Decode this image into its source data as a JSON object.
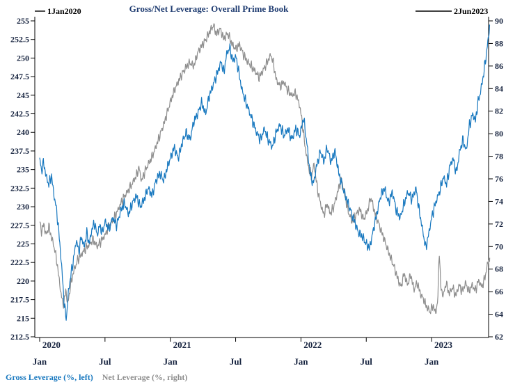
{
  "chart_data": {
    "type": "line",
    "title": "Gross/Net Leverage: Overall Prime Book",
    "annotations": {
      "start_date_label": "1Jan2020",
      "end_date_label": "2Jun2023"
    },
    "x_axis": {
      "unit": "decimal_year",
      "range": [
        2019.96,
        2023.46
      ],
      "month_ticks": [
        {
          "t": 2020.0,
          "label": "Jan"
        },
        {
          "t": 2020.5,
          "label": "Jul"
        },
        {
          "t": 2021.0,
          "label": "Jan"
        },
        {
          "t": 2021.5,
          "label": "Jul"
        },
        {
          "t": 2022.0,
          "label": "Jan"
        },
        {
          "t": 2022.5,
          "label": "Jul"
        },
        {
          "t": 2023.0,
          "label": "Jan"
        }
      ],
      "year_labels": [
        {
          "t": 2020.09,
          "label": "2020"
        },
        {
          "t": 2021.09,
          "label": "2021"
        },
        {
          "t": 2022.09,
          "label": "2022"
        },
        {
          "t": 2023.09,
          "label": "2023"
        }
      ]
    },
    "y_left_axis": {
      "min": 212.5,
      "max": 255,
      "tick_step": 2.5
    },
    "y_right_axis": {
      "min": 62,
      "max": 90,
      "tick_step": 2
    },
    "series": [
      {
        "name": "Gross Leverage (%, left)",
        "axis": "left",
        "color": "#1878bf",
        "points": [
          [
            2020.0,
            236.3
          ],
          [
            2020.015,
            234.8
          ],
          [
            2020.03,
            236.0
          ],
          [
            2020.05,
            234.0
          ],
          [
            2020.07,
            233.0
          ],
          [
            2020.09,
            234.2
          ],
          [
            2020.11,
            231.5
          ],
          [
            2020.13,
            229.5
          ],
          [
            2020.15,
            226.0
          ],
          [
            2020.17,
            221.5
          ],
          [
            2020.19,
            216.5
          ],
          [
            2020.205,
            215.0
          ],
          [
            2020.22,
            218.5
          ],
          [
            2020.24,
            221.0
          ],
          [
            2020.26,
            223.0
          ],
          [
            2020.28,
            225.5
          ],
          [
            2020.3,
            224.0
          ],
          [
            2020.32,
            226.0
          ],
          [
            2020.34,
            224.5
          ],
          [
            2020.36,
            226.5
          ],
          [
            2020.38,
            225.0
          ],
          [
            2020.4,
            227.0
          ],
          [
            2020.42,
            227.8
          ],
          [
            2020.44,
            226.2
          ],
          [
            2020.46,
            227.5
          ],
          [
            2020.48,
            226.5
          ],
          [
            2020.5,
            228.0
          ],
          [
            2020.53,
            227.0
          ],
          [
            2020.56,
            228.5
          ],
          [
            2020.59,
            227.5
          ],
          [
            2020.62,
            229.5
          ],
          [
            2020.65,
            230.5
          ],
          [
            2020.68,
            229.0
          ],
          [
            2020.71,
            230.5
          ],
          [
            2020.74,
            231.5
          ],
          [
            2020.77,
            230.0
          ],
          [
            2020.8,
            231.0
          ],
          [
            2020.83,
            232.5
          ],
          [
            2020.86,
            231.5
          ],
          [
            2020.89,
            233.5
          ],
          [
            2020.92,
            234.5
          ],
          [
            2020.95,
            233.5
          ],
          [
            2020.98,
            235.5
          ],
          [
            2021.0,
            236.5
          ],
          [
            2021.03,
            238.0
          ],
          [
            2021.06,
            236.5
          ],
          [
            2021.09,
            238.5
          ],
          [
            2021.12,
            240.0
          ],
          [
            2021.15,
            239.0
          ],
          [
            2021.18,
            241.5
          ],
          [
            2021.21,
            242.5
          ],
          [
            2021.24,
            244.0
          ],
          [
            2021.27,
            242.5
          ],
          [
            2021.3,
            245.0
          ],
          [
            2021.33,
            246.5
          ],
          [
            2021.36,
            248.0
          ],
          [
            2021.39,
            249.5
          ],
          [
            2021.41,
            248.0
          ],
          [
            2021.43,
            250.5
          ],
          [
            2021.455,
            251.4
          ],
          [
            2021.48,
            249.5
          ],
          [
            2021.5,
            250.3
          ],
          [
            2021.52,
            248.5
          ],
          [
            2021.545,
            246.0
          ],
          [
            2021.57,
            244.5
          ],
          [
            2021.6,
            243.0
          ],
          [
            2021.63,
            241.5
          ],
          [
            2021.66,
            240.0
          ],
          [
            2021.69,
            239.0
          ],
          [
            2021.72,
            240.5
          ],
          [
            2021.75,
            239.0
          ],
          [
            2021.78,
            238.0
          ],
          [
            2021.81,
            240.0
          ],
          [
            2021.84,
            241.0
          ],
          [
            2021.87,
            239.5
          ],
          [
            2021.9,
            240.5
          ],
          [
            2021.93,
            239.0
          ],
          [
            2021.96,
            240.5
          ],
          [
            2021.99,
            239.5
          ],
          [
            2022.02,
            242.0
          ],
          [
            2022.045,
            238.5
          ],
          [
            2022.07,
            234.5
          ],
          [
            2022.095,
            233.0
          ],
          [
            2022.12,
            235.5
          ],
          [
            2022.15,
            237.5
          ],
          [
            2022.175,
            236.0
          ],
          [
            2022.2,
            238.0
          ],
          [
            2022.23,
            236.0
          ],
          [
            2022.26,
            237.5
          ],
          [
            2022.29,
            234.5
          ],
          [
            2022.32,
            232.5
          ],
          [
            2022.35,
            231.0
          ],
          [
            2022.38,
            229.5
          ],
          [
            2022.41,
            228.0
          ],
          [
            2022.44,
            226.5
          ],
          [
            2022.47,
            226.0
          ],
          [
            2022.5,
            225.0
          ],
          [
            2022.525,
            224.4
          ],
          [
            2022.55,
            226.5
          ],
          [
            2022.58,
            229.0
          ],
          [
            2022.61,
            231.5
          ],
          [
            2022.64,
            232.5
          ],
          [
            2022.67,
            230.5
          ],
          [
            2022.7,
            232.0
          ],
          [
            2022.73,
            229.5
          ],
          [
            2022.76,
            228.5
          ],
          [
            2022.79,
            230.5
          ],
          [
            2022.82,
            232.0
          ],
          [
            2022.85,
            231.0
          ],
          [
            2022.88,
            232.5
          ],
          [
            2022.905,
            229.5
          ],
          [
            2022.93,
            227.0
          ],
          [
            2022.955,
            224.4
          ],
          [
            2022.98,
            226.5
          ],
          [
            2023.0,
            228.5
          ],
          [
            2023.03,
            230.5
          ],
          [
            2023.06,
            232.0
          ],
          [
            2023.09,
            234.0
          ],
          [
            2023.115,
            233.0
          ],
          [
            2023.14,
            235.5
          ],
          [
            2023.165,
            236.5
          ],
          [
            2023.19,
            234.5
          ],
          [
            2023.215,
            237.5
          ],
          [
            2023.24,
            239.0
          ],
          [
            2023.265,
            237.5
          ],
          [
            2023.29,
            241.0
          ],
          [
            2023.315,
            242.5
          ],
          [
            2023.335,
            241.5
          ],
          [
            2023.355,
            244.0
          ],
          [
            2023.375,
            245.5
          ],
          [
            2023.395,
            247.5
          ],
          [
            2023.415,
            250.0
          ],
          [
            2023.43,
            252.0
          ],
          [
            2023.445,
            254.4
          ]
        ]
      },
      {
        "name": "Net Leverage (%, right)",
        "axis": "right",
        "color": "#8e8e8e",
        "points": [
          [
            2020.0,
            72.2
          ],
          [
            2020.015,
            71.3
          ],
          [
            2020.03,
            72.0
          ],
          [
            2020.05,
            71.0
          ],
          [
            2020.07,
            71.8
          ],
          [
            2020.09,
            70.8
          ],
          [
            2020.11,
            70.0
          ],
          [
            2020.13,
            68.8
          ],
          [
            2020.15,
            67.0
          ],
          [
            2020.17,
            65.3
          ],
          [
            2020.185,
            64.9
          ],
          [
            2020.2,
            66.2
          ],
          [
            2020.215,
            64.8
          ],
          [
            2020.235,
            66.5
          ],
          [
            2020.26,
            67.8
          ],
          [
            2020.29,
            68.8
          ],
          [
            2020.32,
            69.3
          ],
          [
            2020.35,
            69.8
          ],
          [
            2020.38,
            70.2
          ],
          [
            2020.41,
            70.6
          ],
          [
            2020.44,
            70.0
          ],
          [
            2020.47,
            70.5
          ],
          [
            2020.5,
            71.0
          ],
          [
            2020.53,
            71.8
          ],
          [
            2020.56,
            72.3
          ],
          [
            2020.59,
            73.0
          ],
          [
            2020.62,
            73.8
          ],
          [
            2020.65,
            74.5
          ],
          [
            2020.68,
            75.0
          ],
          [
            2020.71,
            75.6
          ],
          [
            2020.74,
            76.3
          ],
          [
            2020.76,
            77.0
          ],
          [
            2020.78,
            75.8
          ],
          [
            2020.81,
            76.8
          ],
          [
            2020.84,
            77.5
          ],
          [
            2020.87,
            78.2
          ],
          [
            2020.9,
            79.2
          ],
          [
            2020.93,
            80.2
          ],
          [
            2020.96,
            81.2
          ],
          [
            2021.0,
            82.8
          ],
          [
            2021.03,
            83.8
          ],
          [
            2021.06,
            84.6
          ],
          [
            2021.09,
            85.3
          ],
          [
            2021.12,
            85.9
          ],
          [
            2021.15,
            86.3
          ],
          [
            2021.18,
            86.0
          ],
          [
            2021.21,
            87.2
          ],
          [
            2021.24,
            87.8
          ],
          [
            2021.27,
            88.3
          ],
          [
            2021.3,
            89.0
          ],
          [
            2021.33,
            89.6
          ],
          [
            2021.355,
            88.8
          ],
          [
            2021.38,
            89.3
          ],
          [
            2021.41,
            88.4
          ],
          [
            2021.44,
            88.9
          ],
          [
            2021.47,
            88.0
          ],
          [
            2021.5,
            87.5
          ],
          [
            2021.53,
            87.9
          ],
          [
            2021.56,
            87.0
          ],
          [
            2021.59,
            86.4
          ],
          [
            2021.62,
            86.0
          ],
          [
            2021.65,
            85.5
          ],
          [
            2021.68,
            85.0
          ],
          [
            2021.71,
            85.6
          ],
          [
            2021.74,
            86.3
          ],
          [
            2021.77,
            87.0
          ],
          [
            2021.79,
            86.2
          ],
          [
            2021.81,
            84.8
          ],
          [
            2021.84,
            84.2
          ],
          [
            2021.87,
            84.6
          ],
          [
            2021.9,
            83.8
          ],
          [
            2021.93,
            83.4
          ],
          [
            2021.96,
            83.6
          ],
          [
            2021.99,
            82.5
          ],
          [
            2022.01,
            81.0
          ],
          [
            2022.03,
            79.0
          ],
          [
            2022.055,
            77.2
          ],
          [
            2022.08,
            76.2
          ],
          [
            2022.1,
            77.3
          ],
          [
            2022.125,
            75.2
          ],
          [
            2022.15,
            73.8
          ],
          [
            2022.175,
            72.8
          ],
          [
            2022.2,
            73.8
          ],
          [
            2022.225,
            72.9
          ],
          [
            2022.25,
            73.5
          ],
          [
            2022.28,
            74.8
          ],
          [
            2022.31,
            76.0
          ],
          [
            2022.335,
            74.6
          ],
          [
            2022.36,
            73.2
          ],
          [
            2022.39,
            72.2
          ],
          [
            2022.42,
            72.8
          ],
          [
            2022.45,
            73.3
          ],
          [
            2022.48,
            72.4
          ],
          [
            2022.51,
            73.2
          ],
          [
            2022.535,
            74.4
          ],
          [
            2022.56,
            73.2
          ],
          [
            2022.59,
            72.2
          ],
          [
            2022.62,
            71.2
          ],
          [
            2022.65,
            70.2
          ],
          [
            2022.68,
            69.2
          ],
          [
            2022.71,
            68.3
          ],
          [
            2022.74,
            67.2
          ],
          [
            2022.765,
            66.4
          ],
          [
            2022.79,
            67.6
          ],
          [
            2022.815,
            66.6
          ],
          [
            2022.84,
            67.5
          ],
          [
            2022.865,
            66.2
          ],
          [
            2022.89,
            66.8
          ],
          [
            2022.915,
            65.8
          ],
          [
            2022.94,
            65.3
          ],
          [
            2022.965,
            64.6
          ],
          [
            2022.99,
            64.2
          ],
          [
            2023.01,
            64.8
          ],
          [
            2023.03,
            64.1
          ],
          [
            2023.048,
            65.2
          ],
          [
            2023.058,
            69.9
          ],
          [
            2023.07,
            66.4
          ],
          [
            2023.09,
            65.6
          ],
          [
            2023.11,
            66.8
          ],
          [
            2023.135,
            65.8
          ],
          [
            2023.16,
            66.4
          ],
          [
            2023.185,
            65.6
          ],
          [
            2023.21,
            66.6
          ],
          [
            2023.235,
            66.0
          ],
          [
            2023.26,
            66.8
          ],
          [
            2023.285,
            66.0
          ],
          [
            2023.31,
            66.6
          ],
          [
            2023.335,
            66.1
          ],
          [
            2023.36,
            67.0
          ],
          [
            2023.385,
            66.4
          ],
          [
            2023.41,
            67.3
          ],
          [
            2023.425,
            68.3
          ],
          [
            2023.445,
            69.0
          ]
        ]
      }
    ]
  }
}
